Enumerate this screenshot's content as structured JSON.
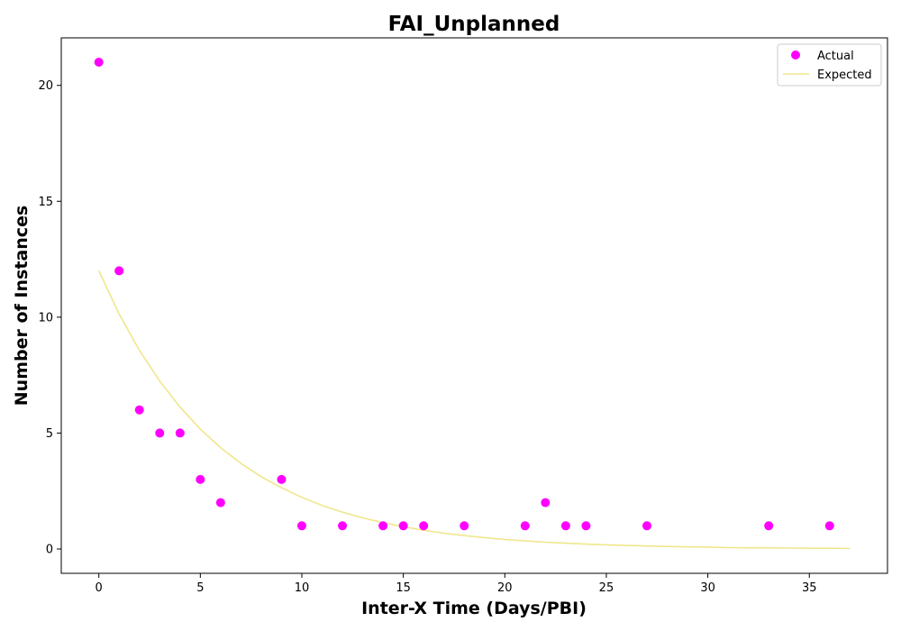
{
  "chart_data": {
    "type": "scatter",
    "title": "FAI_Unplanned",
    "xlabel": "Inter-X Time (Days/PBI)",
    "ylabel": "Number of Instances",
    "xlim": [
      -1.85,
      38.85
    ],
    "ylim": [
      -1.05,
      22.05
    ],
    "xticks": [
      0,
      5,
      10,
      15,
      20,
      25,
      30,
      35
    ],
    "yticks": [
      0,
      5,
      10,
      15,
      20
    ],
    "grid": false,
    "legend_position": "top-right",
    "series": [
      {
        "name": "Actual",
        "kind": "scatter",
        "color": "#ff00ff",
        "x": [
          0,
          1,
          2,
          3,
          4,
          5,
          6,
          9,
          10,
          12,
          14,
          15,
          16,
          18,
          21,
          22,
          23,
          24,
          27,
          33,
          36
        ],
        "y": [
          21,
          12,
          6,
          5,
          5,
          3,
          2,
          3,
          1,
          1,
          1,
          1,
          1,
          1,
          1,
          2,
          1,
          1,
          1,
          1,
          1
        ]
      },
      {
        "name": "Expected",
        "kind": "line",
        "color": "#f0e68c",
        "x": [
          0,
          1,
          2,
          3,
          4,
          5,
          6,
          7,
          8,
          9,
          10,
          11,
          12,
          13,
          14,
          15,
          16,
          17,
          18,
          19,
          20,
          21,
          22,
          23,
          24,
          25,
          26,
          27,
          28,
          29,
          30,
          31,
          32,
          33,
          34,
          35,
          36,
          37
        ],
        "y": [
          12.0,
          10.14,
          8.57,
          7.24,
          6.12,
          5.17,
          4.37,
          3.69,
          3.12,
          2.64,
          2.23,
          1.88,
          1.59,
          1.34,
          1.13,
          0.96,
          0.81,
          0.68,
          0.58,
          0.49,
          0.41,
          0.35,
          0.29,
          0.25,
          0.21,
          0.18,
          0.15,
          0.13,
          0.11,
          0.09,
          0.08,
          0.06,
          0.05,
          0.05,
          0.04,
          0.03,
          0.03,
          0.02
        ]
      }
    ]
  }
}
